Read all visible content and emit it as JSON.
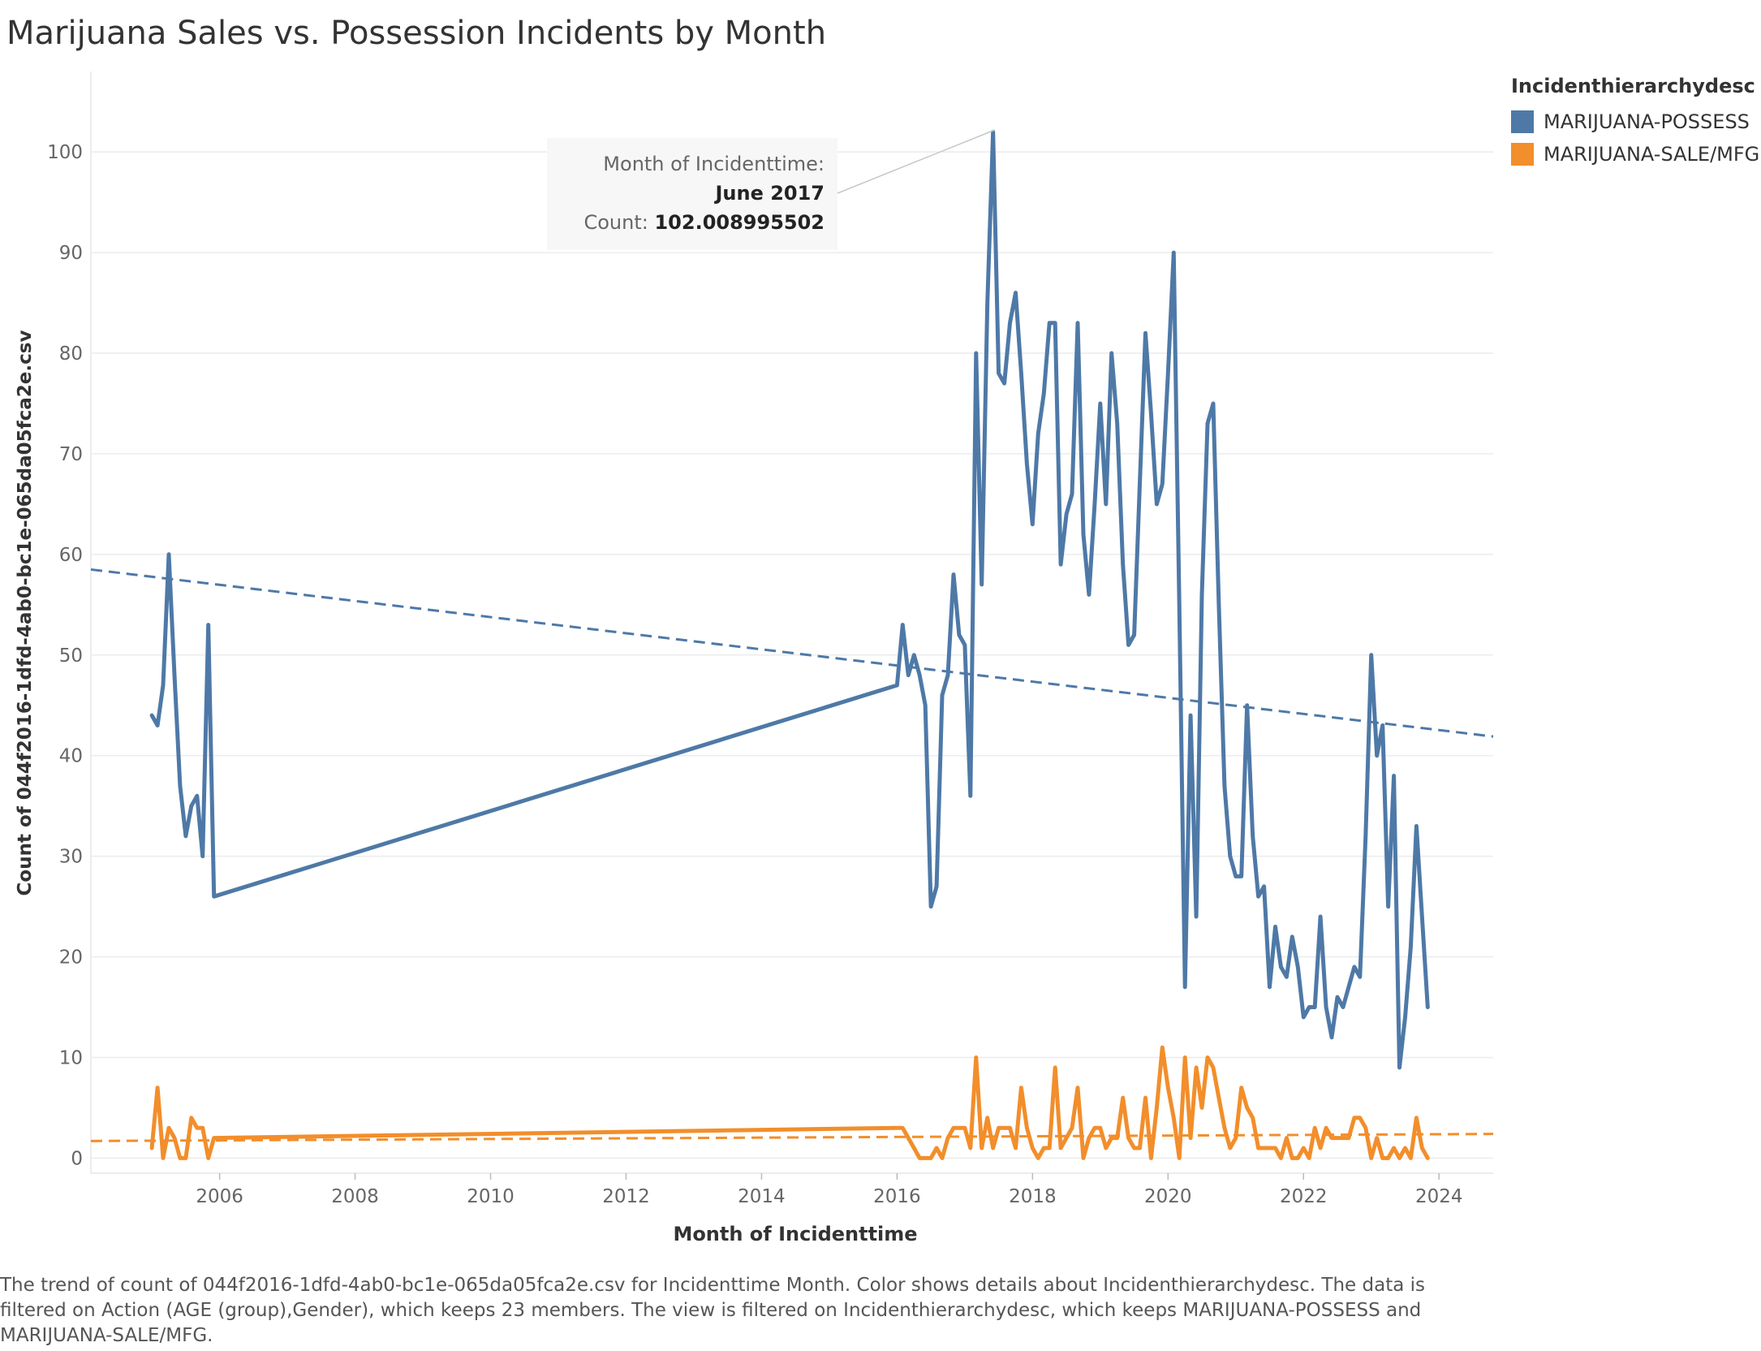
{
  "title": "Marijuana Sales vs. Possession Incidents by Month",
  "legend": {
    "title": "Incidenthierarchydesc",
    "items": [
      {
        "label": "MARIJUANA-POSSESS",
        "color": "#4e79a7"
      },
      {
        "label": "MARIJUANA-SALE/MFG",
        "color": "#f28e2b"
      }
    ]
  },
  "tooltip": {
    "label": "Month of Incidenttime:",
    "value": "June 2017",
    "count_label": "Count:",
    "count_value": "102.008995502"
  },
  "caption": "The trend of count of 044f2016-1dfd-4ab0-bc1e-065da05fca2e.csv for Incidenttime Month.  Color shows details about Incidenthierarchydesc. The data is filtered on Action (AGE (group),Gender), which keeps 23 members. The view is filtered on Incidenthierarchydesc, which keeps MARIJUANA-POSSESS and MARIJUANA-SALE/MFG.",
  "chart_data": {
    "type": "line",
    "xlabel": "Month of Incidenttime",
    "ylabel": "Count of 044f2016-1dfd-4ab0-bc1e-065da05fca2e.csv",
    "xlim": [
      2004.1,
      2024.8
    ],
    "ylim": [
      -1.5,
      108
    ],
    "x_ticks": [
      2006,
      2008,
      2010,
      2012,
      2014,
      2016,
      2018,
      2020,
      2022,
      2024
    ],
    "y_ticks": [
      0,
      10,
      20,
      30,
      40,
      50,
      60,
      70,
      80,
      90,
      100
    ],
    "grid": true,
    "legend_position": "top-right",
    "series": [
      {
        "name": "MARIJUANA-POSSESS",
        "color": "#4e79a7",
        "x": [
          "2005-01",
          "2005-02",
          "2005-03",
          "2005-04",
          "2005-05",
          "2005-06",
          "2005-07",
          "2005-08",
          "2005-09",
          "2005-10",
          "2005-11",
          "2005-12",
          "2016-01",
          "2016-02",
          "2016-03",
          "2016-04",
          "2016-05",
          "2016-06",
          "2016-07",
          "2016-08",
          "2016-09",
          "2016-10",
          "2016-11",
          "2016-12",
          "2017-01",
          "2017-02",
          "2017-03",
          "2017-04",
          "2017-05",
          "2017-06",
          "2017-07",
          "2017-08",
          "2017-09",
          "2017-10",
          "2017-11",
          "2017-12",
          "2018-01",
          "2018-02",
          "2018-03",
          "2018-04",
          "2018-05",
          "2018-06",
          "2018-07",
          "2018-08",
          "2018-09",
          "2018-10",
          "2018-11",
          "2018-12",
          "2019-01",
          "2019-02",
          "2019-03",
          "2019-04",
          "2019-05",
          "2019-06",
          "2019-07",
          "2019-08",
          "2019-09",
          "2019-10",
          "2019-11",
          "2019-12",
          "2020-01",
          "2020-02",
          "2020-03",
          "2020-04",
          "2020-05",
          "2020-06",
          "2020-07",
          "2020-08",
          "2020-09",
          "2020-10",
          "2020-11",
          "2020-12",
          "2021-01",
          "2021-02",
          "2021-03",
          "2021-04",
          "2021-05",
          "2021-06",
          "2021-07",
          "2021-08",
          "2021-09",
          "2021-10",
          "2021-11",
          "2021-12",
          "2022-01",
          "2022-02",
          "2022-03",
          "2022-04",
          "2022-05",
          "2022-06",
          "2022-07",
          "2022-08",
          "2022-09",
          "2022-10",
          "2022-11",
          "2022-12",
          "2023-01",
          "2023-02",
          "2023-03",
          "2023-04",
          "2023-05",
          "2023-06",
          "2023-07",
          "2023-08",
          "2023-09",
          "2023-10",
          "2023-11"
        ],
        "values": [
          44,
          43,
          47,
          60,
          48,
          37,
          32,
          35,
          36,
          30,
          53,
          26,
          47,
          53,
          48,
          50,
          48,
          45,
          25,
          27,
          46,
          48,
          58,
          52,
          51,
          36,
          80,
          57,
          85,
          102,
          78,
          77,
          83,
          86,
          78,
          69,
          63,
          72,
          76,
          83,
          83,
          59,
          64,
          66,
          83,
          62,
          56,
          65,
          75,
          65,
          80,
          73,
          59,
          51,
          52,
          67,
          82,
          74,
          65,
          67,
          78,
          90,
          55,
          17,
          44,
          24,
          56,
          73,
          75,
          55,
          37,
          30,
          28,
          28,
          45,
          32,
          26,
          27,
          17,
          23,
          19,
          18,
          22,
          19,
          14,
          15,
          15,
          24,
          15,
          12,
          16,
          15,
          17,
          19,
          18,
          32,
          50,
          40,
          43,
          25,
          38,
          9,
          14,
          21,
          33,
          24,
          15
        ]
      },
      {
        "name": "MARIJUANA-SALE/MFG",
        "color": "#f28e2b",
        "x": [
          "2005-01",
          "2005-02",
          "2005-03",
          "2005-04",
          "2005-05",
          "2005-06",
          "2005-07",
          "2005-08",
          "2005-09",
          "2005-10",
          "2005-11",
          "2005-12",
          "2016-01",
          "2016-02",
          "2016-03",
          "2016-04",
          "2016-05",
          "2016-06",
          "2016-07",
          "2016-08",
          "2016-09",
          "2016-10",
          "2016-11",
          "2016-12",
          "2017-01",
          "2017-02",
          "2017-03",
          "2017-04",
          "2017-05",
          "2017-06",
          "2017-07",
          "2017-08",
          "2017-09",
          "2017-10",
          "2017-11",
          "2017-12",
          "2018-01",
          "2018-02",
          "2018-03",
          "2018-04",
          "2018-05",
          "2018-06",
          "2018-07",
          "2018-08",
          "2018-09",
          "2018-10",
          "2018-11",
          "2018-12",
          "2019-01",
          "2019-02",
          "2019-03",
          "2019-04",
          "2019-05",
          "2019-06",
          "2019-07",
          "2019-08",
          "2019-09",
          "2019-10",
          "2019-11",
          "2019-12",
          "2020-01",
          "2020-02",
          "2020-03",
          "2020-04",
          "2020-05",
          "2020-06",
          "2020-07",
          "2020-08",
          "2020-09",
          "2020-10",
          "2020-11",
          "2020-12",
          "2021-01",
          "2021-02",
          "2021-03",
          "2021-04",
          "2021-05",
          "2021-06",
          "2021-07",
          "2021-08",
          "2021-09",
          "2021-10",
          "2021-11",
          "2021-12",
          "2022-01",
          "2022-02",
          "2022-03",
          "2022-04",
          "2022-05",
          "2022-06",
          "2022-07",
          "2022-08",
          "2022-09",
          "2022-10",
          "2022-11",
          "2022-12",
          "2023-01",
          "2023-02",
          "2023-03",
          "2023-04",
          "2023-05",
          "2023-06",
          "2023-07",
          "2023-08",
          "2023-09",
          "2023-10",
          "2023-11"
        ],
        "values": [
          1,
          7,
          0,
          3,
          2,
          0,
          0,
          4,
          3,
          3,
          0,
          2,
          3,
          3,
          2,
          1,
          0,
          0,
          0,
          1,
          0,
          2,
          3,
          3,
          3,
          1,
          10,
          1,
          4,
          1,
          3,
          3,
          3,
          1,
          7,
          3,
          1,
          0,
          1,
          1,
          9,
          1,
          2,
          3,
          7,
          0,
          2,
          3,
          3,
          1,
          2,
          2,
          6,
          2,
          1,
          1,
          6,
          0,
          5,
          11,
          7,
          4,
          0,
          10,
          2,
          9,
          5,
          10,
          9,
          6,
          3,
          1,
          2,
          7,
          5,
          4,
          1,
          1,
          1,
          1,
          0,
          2,
          0,
          0,
          1,
          0,
          3,
          1,
          3,
          2,
          2,
          2,
          2,
          4,
          4,
          3,
          0,
          2,
          0,
          0,
          1,
          0,
          1,
          0,
          4,
          1,
          0
        ]
      }
    ],
    "trend_lines": [
      {
        "series": "MARIJUANA-POSSESS",
        "style": "dashed",
        "x": [
          2004.1,
          2024.8
        ],
        "values": [
          58.5,
          41.9
        ]
      },
      {
        "series": "MARIJUANA-SALE/MFG",
        "style": "dashed",
        "x": [
          2004.1,
          2024.8
        ],
        "values": [
          1.7,
          2.4
        ]
      }
    ]
  }
}
